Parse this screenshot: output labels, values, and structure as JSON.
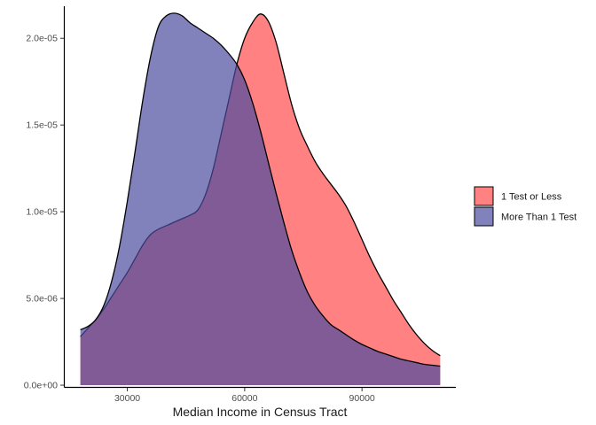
{
  "chart_data": {
    "type": "area",
    "title": "",
    "xlabel": "Median Income in Census Tract",
    "ylabel": "",
    "xlim": [
      14000,
      114000
    ],
    "ylim": [
      -1e-07,
      2.185e-05
    ],
    "x_ticks": [
      {
        "value": 30000,
        "label": "30000"
      },
      {
        "value": 60000,
        "label": "60000"
      },
      {
        "value": 90000,
        "label": "90000"
      }
    ],
    "y_ticks": [
      {
        "value": 0,
        "label": "0.0e+00"
      },
      {
        "value": 5e-06,
        "label": "5.0e-06"
      },
      {
        "value": 1e-05,
        "label": "1.0e-05"
      },
      {
        "value": 1.5e-05,
        "label": "1.5e-05"
      },
      {
        "value": 2e-05,
        "label": "2.0e-05"
      }
    ],
    "grid": false,
    "legend_position": "right",
    "series": [
      {
        "name": "1 Test or Less",
        "color": "#ff6b6b",
        "x": [
          18000,
          20000,
          22000,
          24000,
          26000,
          28000,
          30000,
          32000,
          34000,
          36000,
          38000,
          40000,
          42000,
          44000,
          46000,
          48000,
          50000,
          52000,
          54000,
          56000,
          58000,
          60000,
          62000,
          64000,
          66000,
          68000,
          70000,
          72000,
          74000,
          76000,
          78000,
          80000,
          82000,
          84000,
          86000,
          88000,
          90000,
          92000,
          94000,
          96000,
          98000,
          100000,
          102000,
          104000,
          106000,
          108000,
          110000
        ],
        "values": [
          2.8e-06,
          3.3e-06,
          3.8e-06,
          4.4e-06,
          5.1e-06,
          5.8e-06,
          6.5e-06,
          7.3e-06,
          8.1e-06,
          8.7e-06,
          9e-06,
          9.2e-06,
          9.4e-06,
          9.6e-06,
          9.8e-06,
          1.01e-05,
          1.1e-05,
          1.25e-05,
          1.45e-05,
          1.65e-05,
          1.85e-05,
          2e-05,
          2.09e-05,
          2.14e-05,
          2.1e-05,
          1.98e-05,
          1.8e-05,
          1.62e-05,
          1.48e-05,
          1.38e-05,
          1.29e-05,
          1.22e-05,
          1.16e-05,
          1.1e-05,
          1.03e-05,
          9.4e-06,
          8.4e-06,
          7.4e-06,
          6.5e-06,
          5.7e-06,
          4.9e-06,
          4.2e-06,
          3.5e-06,
          2.9e-06,
          2.4e-06,
          2e-06,
          1.7e-06
        ]
      },
      {
        "name": "More Than 1 Test",
        "color": "#4b4b9e",
        "x": [
          18000,
          20000,
          22000,
          24000,
          26000,
          28000,
          30000,
          32000,
          34000,
          36000,
          38000,
          40000,
          42000,
          44000,
          46000,
          48000,
          50000,
          52000,
          54000,
          56000,
          58000,
          60000,
          62000,
          64000,
          66000,
          68000,
          70000,
          72000,
          74000,
          76000,
          78000,
          80000,
          82000,
          84000,
          86000,
          88000,
          90000,
          92000,
          94000,
          96000,
          98000,
          100000,
          102000,
          104000,
          106000,
          108000,
          110000
        ],
        "values": [
          3.2e-06,
          3.4e-06,
          3.8e-06,
          4.6e-06,
          6e-06,
          8e-06,
          1.06e-05,
          1.35e-05,
          1.65e-05,
          1.9e-05,
          2.07e-05,
          2.13e-05,
          2.145e-05,
          2.13e-05,
          2.09e-05,
          2.06e-05,
          2.03e-05,
          2e-05,
          1.96e-05,
          1.91e-05,
          1.85e-05,
          1.76e-05,
          1.63e-05,
          1.47e-05,
          1.29e-05,
          1.11e-05,
          9.4e-06,
          7.8e-06,
          6.5e-06,
          5.4e-06,
          4.6e-06,
          4e-06,
          3.5e-06,
          3.2e-06,
          2.9e-06,
          2.6e-06,
          2.35e-06,
          2.15e-06,
          1.95e-06,
          1.8e-06,
          1.65e-06,
          1.5e-06,
          1.4e-06,
          1.3e-06,
          1.2e-06,
          1.15e-06,
          1.1e-06
        ]
      }
    ]
  }
}
